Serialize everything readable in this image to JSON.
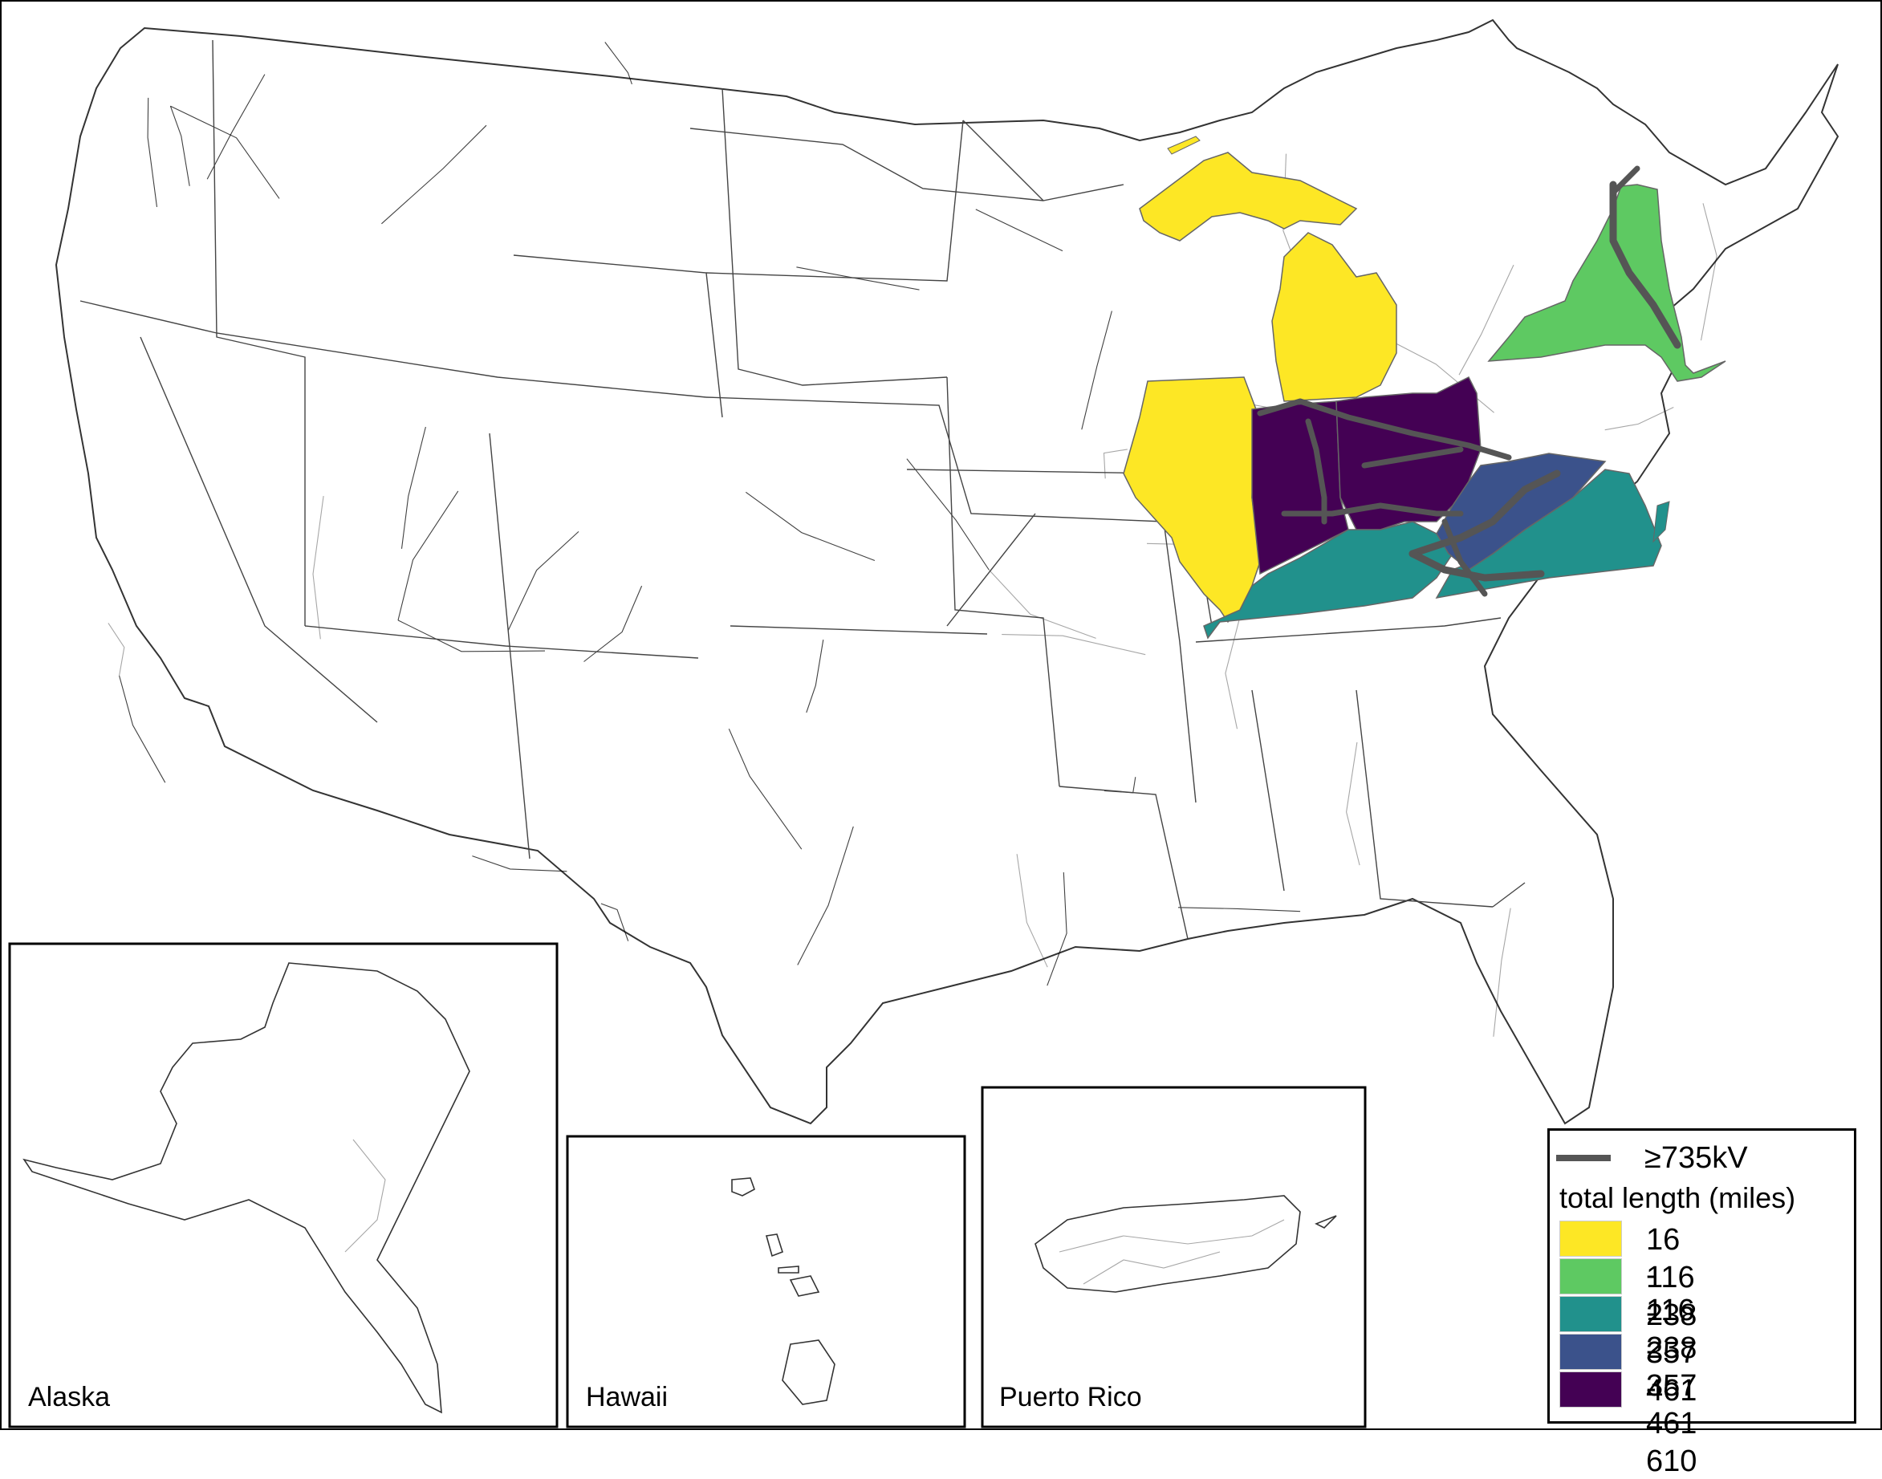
{
  "legend": {
    "hv_label": "≥735kV",
    "title": "total length (miles)",
    "items": [
      {
        "range": "16 - 116",
        "color": "#fde725"
      },
      {
        "range": "116 - 238",
        "color": "#5ec962"
      },
      {
        "range": "238 - 357",
        "color": "#21918c"
      },
      {
        "range": "357 - 461",
        "color": "#3b528b"
      },
      {
        "range": "461 - 610",
        "color": "#440154"
      }
    ]
  },
  "states": [
    {
      "name": "Michigan",
      "bin": 0
    },
    {
      "name": "Illinois",
      "bin": 0
    },
    {
      "name": "New York",
      "bin": 1
    },
    {
      "name": "Kentucky",
      "bin": 2
    },
    {
      "name": "Virginia",
      "bin": 2
    },
    {
      "name": "West Virginia",
      "bin": 3
    },
    {
      "name": "Indiana",
      "bin": 4
    },
    {
      "name": "Ohio",
      "bin": 4
    }
  ],
  "insets": {
    "alaska": "Alaska",
    "hawaii": "Hawaii",
    "puerto_rico": "Puerto Rico"
  }
}
